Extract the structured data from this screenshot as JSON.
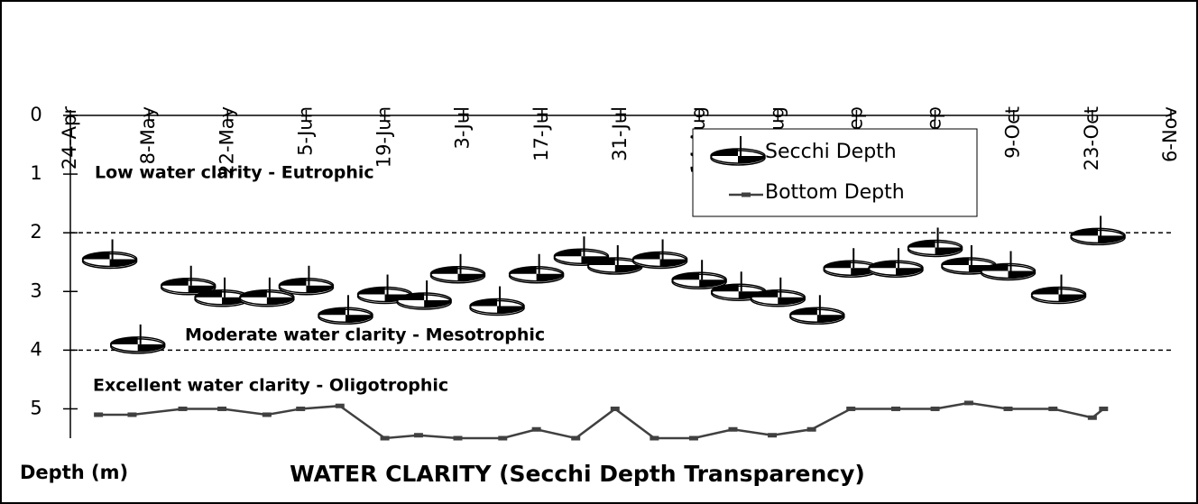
{
  "chart_data": {
    "type": "line",
    "title": "WATER CLARITY (Secchi Depth Transparency)",
    "y_label": "Depth (m)",
    "annotations": [
      "Low water clarity - Eutrophic",
      "Moderate water clarity - Mesotrophic",
      "Excellent water clarity - Oligotrophic"
    ],
    "reference_lines": [
      2,
      4
    ],
    "ylim": [
      0,
      5.5
    ],
    "yticks": [
      0,
      1,
      2,
      3,
      4,
      5
    ],
    "y_inverted": true,
    "xlim": [
      "04-24",
      "11-06"
    ],
    "xticks": [
      {
        "value": "04-24",
        "label": "24-Apr"
      },
      {
        "value": "05-08",
        "label": "8-May"
      },
      {
        "value": "05-22",
        "label": "22-May"
      },
      {
        "value": "06-05",
        "label": "5-Jun"
      },
      {
        "value": "06-19",
        "label": "19-Jun"
      },
      {
        "value": "07-03",
        "label": "3-Jul"
      },
      {
        "value": "07-17",
        "label": "17-Jul"
      },
      {
        "value": "07-31",
        "label": "31-Jul"
      },
      {
        "value": "08-14",
        "label": "14-Aug"
      },
      {
        "value": "08-28",
        "label": "28-Aug"
      },
      {
        "value": "09-11",
        "label": "11-Sep"
      },
      {
        "value": "09-25",
        "label": "25-Sep"
      },
      {
        "value": "10-09",
        "label": "9-Oct"
      },
      {
        "value": "10-23",
        "label": "23-Oct"
      },
      {
        "value": "11-06",
        "label": "6-Nov"
      }
    ],
    "legend": "upper right",
    "series": [
      {
        "name": "Secchi Depth",
        "color": "#000000",
        "style": "markers",
        "x": [
          "05-01",
          "05-06",
          "05-15",
          "05-21",
          "05-29",
          "06-05",
          "06-12",
          "06-19",
          "06-26",
          "07-02",
          "07-09",
          "07-16",
          "07-24",
          "07-30",
          "08-07",
          "08-14",
          "08-21",
          "08-28",
          "09-04",
          "09-10",
          "09-18",
          "09-25",
          "10-01",
          "10-08",
          "10-17",
          "10-24"
        ],
        "values": [
          2.45,
          3.9,
          2.9,
          3.1,
          3.1,
          2.9,
          3.4,
          3.05,
          3.15,
          2.7,
          3.25,
          2.7,
          2.4,
          2.55,
          2.45,
          2.8,
          3.0,
          3.1,
          3.4,
          2.6,
          2.6,
          2.25,
          2.55,
          2.65,
          3.05,
          2.05
        ]
      },
      {
        "name": "Bottom Depth",
        "color": "#404040",
        "style": "line",
        "x": [
          "04-29",
          "05-05",
          "05-14",
          "05-21",
          "05-29",
          "06-04",
          "06-11",
          "06-19",
          "06-25",
          "07-02",
          "07-10",
          "07-16",
          "07-23",
          "07-30",
          "08-06",
          "08-13",
          "08-20",
          "08-27",
          "09-03",
          "09-10",
          "09-18",
          "09-25",
          "10-01",
          "10-08",
          "10-16",
          "10-23",
          "10-25"
        ],
        "values": [
          5.1,
          5.1,
          5.0,
          5.0,
          5.1,
          5.0,
          4.95,
          5.5,
          5.45,
          5.5,
          5.5,
          5.35,
          5.5,
          5.0,
          5.5,
          5.5,
          5.35,
          5.45,
          5.35,
          5.0,
          5.0,
          5.0,
          4.9,
          5.0,
          5.0,
          5.15,
          5.0
        ]
      }
    ]
  }
}
